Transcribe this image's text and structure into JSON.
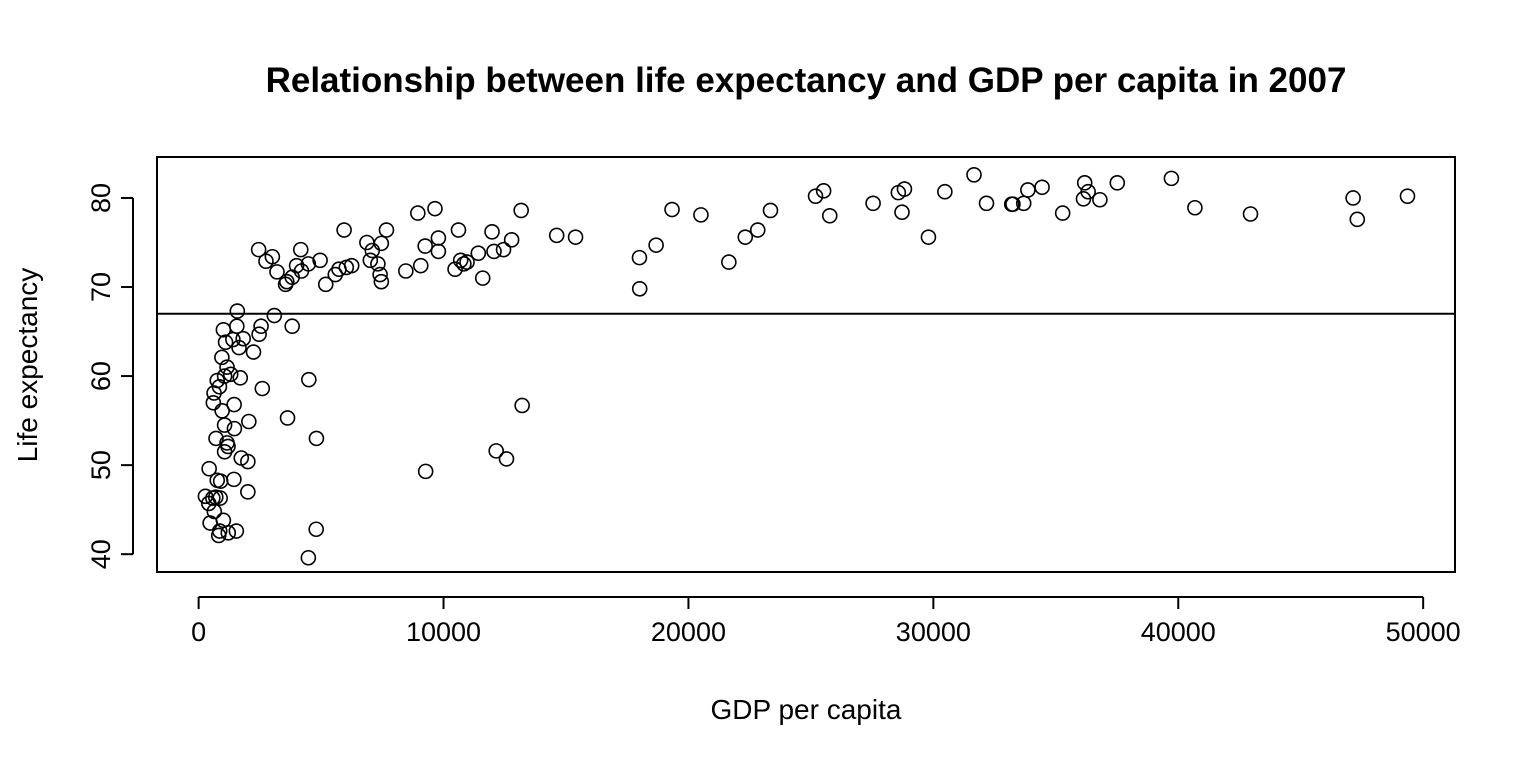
{
  "chart_data": {
    "type": "scatter",
    "title": "Relationship between life expectancy and GDP per capita in 2007",
    "xlabel": "GDP per capita",
    "ylabel": "Life expectancy",
    "xlim": [
      -1700,
      51300
    ],
    "ylim": [
      38,
      84.6
    ],
    "x_ticks": [
      0,
      10000,
      20000,
      30000,
      40000,
      50000
    ],
    "y_ticks": [
      40,
      50,
      60,
      70,
      80
    ],
    "grid": false,
    "legend": "none",
    "reference_line": {
      "orientation": "horizontal",
      "y": 67.0
    },
    "points": [
      [
        277,
        46.5
      ],
      [
        415,
        45.7
      ],
      [
        470,
        43.5
      ],
      [
        430,
        49.6
      ],
      [
        580,
        46.3
      ],
      [
        640,
        44.8
      ],
      [
        700,
        46.4
      ],
      [
        820,
        42.1
      ],
      [
        860,
        42.6
      ],
      [
        900,
        48.2
      ],
      [
        760,
        48.3
      ],
      [
        880,
        46.3
      ],
      [
        1010,
        43.8
      ],
      [
        1210,
        42.4
      ],
      [
        1540,
        42.6
      ],
      [
        1440,
        48.4
      ],
      [
        1060,
        51.5
      ],
      [
        1160,
        52.5
      ],
      [
        1200,
        52.1
      ],
      [
        710,
        53.0
      ],
      [
        1460,
        54.1
      ],
      [
        1060,
        54.5
      ],
      [
        1740,
        50.8
      ],
      [
        2010,
        50.4
      ],
      [
        2010,
        47.0
      ],
      [
        2050,
        54.9
      ],
      [
        600,
        57.0
      ],
      [
        630,
        58.1
      ],
      [
        760,
        59.5
      ],
      [
        850,
        58.8
      ],
      [
        960,
        56.1
      ],
      [
        1450,
        56.8
      ],
      [
        1060,
        60.0
      ],
      [
        1160,
        61.0
      ],
      [
        1310,
        60.2
      ],
      [
        1700,
        59.8
      ],
      [
        950,
        62.1
      ],
      [
        1100,
        63.8
      ],
      [
        1010,
        65.2
      ],
      [
        1400,
        64.1
      ],
      [
        1560,
        65.6
      ],
      [
        1650,
        63.2
      ],
      [
        1820,
        64.2
      ],
      [
        1580,
        67.3
      ],
      [
        2240,
        62.7
      ],
      [
        2470,
        64.7
      ],
      [
        2550,
        65.6
      ],
      [
        2600,
        58.6
      ],
      [
        3090,
        66.8
      ],
      [
        3820,
        65.6
      ],
      [
        3630,
        55.3
      ],
      [
        4500,
        59.6
      ],
      [
        4810,
        53.0
      ],
      [
        4800,
        42.8
      ],
      [
        4480,
        39.6
      ],
      [
        2450,
        74.2
      ],
      [
        2750,
        72.9
      ],
      [
        3010,
        73.4
      ],
      [
        3200,
        71.7
      ],
      [
        3550,
        70.3
      ],
      [
        3600,
        70.6
      ],
      [
        3820,
        71.1
      ],
      [
        4000,
        72.4
      ],
      [
        4170,
        74.2
      ],
      [
        4200,
        71.8
      ],
      [
        4480,
        72.6
      ],
      [
        4960,
        73.0
      ],
      [
        5190,
        70.3
      ],
      [
        5580,
        71.4
      ],
      [
        5730,
        72.0
      ],
      [
        5940,
        76.4
      ],
      [
        6030,
        72.2
      ],
      [
        6250,
        72.4
      ],
      [
        6870,
        75.0
      ],
      [
        7010,
        73.0
      ],
      [
        7090,
        74.1
      ],
      [
        7320,
        72.6
      ],
      [
        7410,
        71.4
      ],
      [
        7460,
        70.6
      ],
      [
        7460,
        74.9
      ],
      [
        7670,
        76.4
      ],
      [
        8460,
        71.8
      ],
      [
        8950,
        78.3
      ],
      [
        9070,
        72.4
      ],
      [
        9250,
        74.6
      ],
      [
        9650,
        78.8
      ],
      [
        9790,
        75.5
      ],
      [
        9790,
        74.0
      ],
      [
        9270,
        49.3
      ],
      [
        10470,
        72.0
      ],
      [
        10610,
        76.4
      ],
      [
        10700,
        73.0
      ],
      [
        10830,
        72.6
      ],
      [
        10960,
        72.8
      ],
      [
        11420,
        73.8
      ],
      [
        11600,
        71.0
      ],
      [
        11980,
        76.2
      ],
      [
        12060,
        74.0
      ],
      [
        12450,
        74.2
      ],
      [
        12780,
        75.3
      ],
      [
        13170,
        78.6
      ],
      [
        13210,
        56.7
      ],
      [
        12150,
        51.6
      ],
      [
        12570,
        50.7
      ],
      [
        14620,
        75.8
      ],
      [
        15390,
        75.6
      ],
      [
        18000,
        73.3
      ],
      [
        18010,
        69.8
      ],
      [
        18680,
        74.7
      ],
      [
        19330,
        78.7
      ],
      [
        20510,
        78.1
      ],
      [
        21650,
        72.8
      ],
      [
        22320,
        75.6
      ],
      [
        22830,
        76.4
      ],
      [
        23350,
        78.6
      ],
      [
        25190,
        80.2
      ],
      [
        25520,
        80.8
      ],
      [
        25770,
        78.0
      ],
      [
        27540,
        79.4
      ],
      [
        28570,
        80.6
      ],
      [
        28720,
        78.4
      ],
      [
        28820,
        81.0
      ],
      [
        29800,
        75.6
      ],
      [
        30470,
        80.7
      ],
      [
        31660,
        82.6
      ],
      [
        32170,
        79.4
      ],
      [
        33200,
        79.3
      ],
      [
        33250,
        79.3
      ],
      [
        33690,
        79.4
      ],
      [
        33860,
        80.9
      ],
      [
        34440,
        81.2
      ],
      [
        35280,
        78.3
      ],
      [
        36130,
        79.9
      ],
      [
        36180,
        81.7
      ],
      [
        36320,
        80.7
      ],
      [
        36800,
        79.8
      ],
      [
        37510,
        81.7
      ],
      [
        39720,
        82.2
      ],
      [
        40680,
        78.9
      ],
      [
        42950,
        78.2
      ],
      [
        47140,
        80.0
      ],
      [
        47310,
        77.6
      ],
      [
        49360,
        80.2
      ]
    ]
  }
}
